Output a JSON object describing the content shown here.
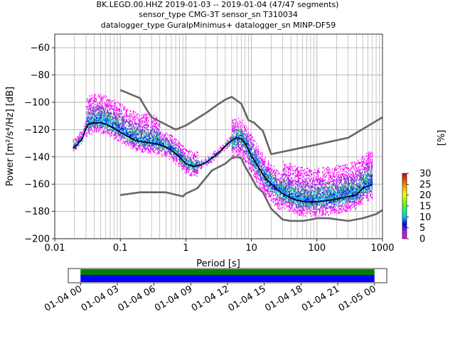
{
  "title": {
    "line1": "BK.LEGD.00.HHZ   2019-01-03 -- 2019-01-04  (47/47 segments)",
    "line2": "sensor_type CMG-3T sensor_sn T310034",
    "line3": "datalogger_type GuralpMinimus+ datalogger_sn MINP-DF59"
  },
  "chart_data": [
    {
      "type": "heatmap",
      "title": "",
      "xlabel": "Period [s]",
      "ylabel": "Power [m²/s⁴/Hz] [dB]",
      "x_scale": "log",
      "xlim": [
        0.01,
        1000
      ],
      "ylim": [
        -200,
        -50
      ],
      "x_ticks": [
        0.01,
        0.1,
        1,
        10,
        100,
        1000
      ],
      "x_tick_labels": [
        "0.01",
        "0.1",
        "1",
        "10",
        "100",
        "1000"
      ],
      "y_ticks": [
        -200,
        -180,
        -160,
        -140,
        -120,
        -100,
        -80,
        -60
      ],
      "y_tick_labels": [
        "−200",
        "−180",
        "−160",
        "−140",
        "−120",
        "−100",
        "−80",
        "−60"
      ],
      "grid": true,
      "colorbar": {
        "label": "[%]",
        "range": [
          0,
          30
        ],
        "ticks": [
          0,
          5,
          10,
          15,
          20,
          25,
          30
        ],
        "tick_labels": [
          "0",
          "5",
          "10",
          "15",
          "20",
          "25",
          "30"
        ]
      },
      "series": [
        {
          "name": "",
          "color": "#000000",
          "points": [
            [
              0.019,
              -134
            ],
            [
              0.022,
              -131
            ],
            [
              0.026,
              -127
            ],
            [
              0.03,
              -119
            ],
            [
              0.033,
              -116
            ],
            [
              0.04,
              -115
            ],
            [
              0.05,
              -115
            ],
            [
              0.06,
              -116
            ],
            [
              0.08,
              -119
            ],
            [
              0.1,
              -122
            ],
            [
              0.13,
              -125
            ],
            [
              0.17,
              -128
            ],
            [
              0.22,
              -129
            ],
            [
              0.3,
              -130
            ],
            [
              0.4,
              -131
            ],
            [
              0.5,
              -133
            ],
            [
              0.6,
              -135
            ],
            [
              0.8,
              -140
            ],
            [
              1.0,
              -145
            ],
            [
              1.3,
              -147
            ],
            [
              1.7,
              -146
            ],
            [
              2.2,
              -143
            ],
            [
              3.0,
              -138
            ],
            [
              4.0,
              -132
            ],
            [
              5.0,
              -128
            ],
            [
              6.0,
              -126
            ],
            [
              7.0,
              -127
            ],
            [
              8.0,
              -130
            ],
            [
              10.0,
              -139
            ],
            [
              13.0,
              -148
            ],
            [
              16.0,
              -155
            ],
            [
              20.0,
              -160
            ],
            [
              25.0,
              -164
            ],
            [
              30.0,
              -167
            ],
            [
              40.0,
              -170
            ],
            [
              50.0,
              -172
            ],
            [
              70.0,
              -173
            ],
            [
              100.0,
              -173
            ],
            [
              150.0,
              -172
            ],
            [
              200.0,
              -171
            ],
            [
              300.0,
              -169
            ],
            [
              400.0,
              -168
            ],
            [
              500.0,
              -163
            ],
            [
              700.0,
              -160
            ]
          ]
        },
        {
          "name": "",
          "color": "#666666",
          "points": [
            [
              0.1,
              -91
            ],
            [
              0.2,
              -97
            ],
            [
              0.25,
              -105
            ],
            [
              0.3,
              -111
            ],
            [
              0.7,
              -120
            ],
            [
              1.0,
              -117
            ],
            [
              2.0,
              -108
            ],
            [
              3.0,
              -102
            ],
            [
              4.0,
              -98
            ],
            [
              5.0,
              -96
            ],
            [
              7.0,
              -101
            ],
            [
              9.0,
              -113
            ],
            [
              11.0,
              -115
            ],
            [
              15.0,
              -121
            ],
            [
              20.0,
              -138
            ],
            [
              50.0,
              -134
            ],
            [
              100.0,
              -131
            ],
            [
              300.0,
              -126
            ],
            [
              1000.0,
              -111
            ]
          ]
        },
        {
          "name": "",
          "color": "#666666",
          "points": [
            [
              0.1,
              -168
            ],
            [
              0.2,
              -166
            ],
            [
              0.5,
              -166
            ],
            [
              0.9,
              -169
            ],
            [
              1.0,
              -167
            ],
            [
              1.5,
              -163
            ],
            [
              2.5,
              -150
            ],
            [
              4.0,
              -145
            ],
            [
              5.0,
              -141
            ],
            [
              6.0,
              -140
            ],
            [
              7.0,
              -141
            ],
            [
              8.0,
              -147
            ],
            [
              10.0,
              -155
            ],
            [
              12.0,
              -162
            ],
            [
              15.0,
              -166
            ],
            [
              20.0,
              -178
            ],
            [
              30.0,
              -186
            ],
            [
              40.0,
              -187
            ],
            [
              60.0,
              -187
            ],
            [
              80.0,
              -186
            ],
            [
              100.0,
              -185
            ],
            [
              150.0,
              -185
            ],
            [
              300.0,
              -187
            ],
            [
              500.0,
              -185
            ],
            [
              800.0,
              -182
            ],
            [
              1000.0,
              -179
            ]
          ]
        }
      ]
    },
    {
      "type": "bar",
      "title": "",
      "xlabel": "",
      "ylabel": "",
      "x_tick_labels": [
        "01-04 00",
        "01-04 03",
        "01-04 06",
        "01-04 09",
        "01-04 12",
        "01-04 15",
        "01-04 18",
        "01-04 21",
        "01-05 00"
      ],
      "xlim_hours": [
        -1,
        25
      ],
      "bars": [
        {
          "start_hour": 0,
          "end_hour": 24,
          "color": "#0000ff"
        },
        {
          "start_hour": 0,
          "end_hour": 24,
          "color": "#008000"
        }
      ]
    }
  ]
}
